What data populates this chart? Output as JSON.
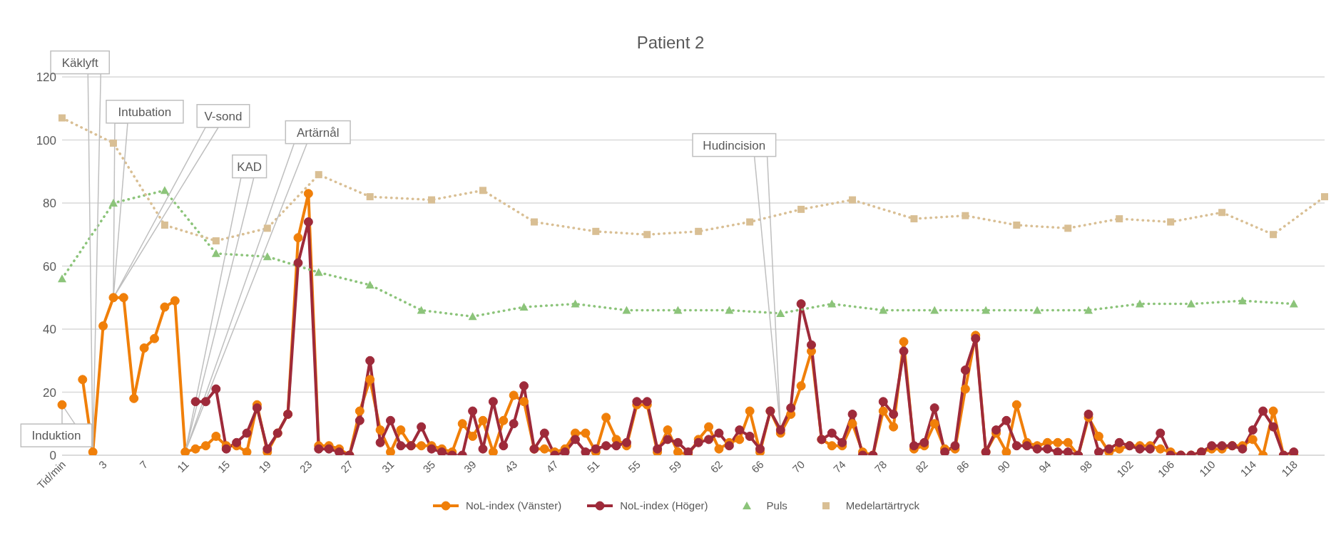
{
  "chart_data": {
    "type": "line",
    "title": "Patient 2",
    "categories": [
      "Tid/min",
      null,
      null,
      null,
      "3",
      null,
      null,
      null,
      "7",
      null,
      null,
      null,
      "11",
      null,
      null,
      null,
      "15",
      null,
      null,
      null,
      "19",
      null,
      null,
      null,
      "23",
      null,
      null,
      null,
      "27",
      null,
      null,
      null,
      "31",
      null,
      null,
      null,
      "35",
      null,
      null,
      null,
      "39",
      null,
      null,
      null,
      "43",
      null,
      null,
      null,
      "47",
      null,
      null,
      null,
      "51",
      null,
      null,
      null,
      "55",
      null,
      null,
      null,
      "59",
      null,
      null,
      null,
      "62",
      null,
      null,
      null,
      "66",
      null,
      null,
      null,
      "70",
      null,
      null,
      null,
      "74",
      null,
      null,
      null,
      "78",
      null,
      null,
      null,
      "82",
      null,
      null,
      null,
      "86",
      null,
      null,
      null,
      "90",
      null,
      null,
      null,
      "94",
      null,
      null,
      null,
      "98",
      null,
      null,
      null,
      "102",
      null,
      null,
      null,
      "106",
      null,
      null,
      null,
      "110",
      null,
      null,
      null,
      "114",
      null,
      null,
      null,
      "118",
      null,
      null,
      null
    ],
    "series": [
      {
        "name": "NoL-index (Vänster)",
        "color": "#f07f09",
        "marker": "circle",
        "line_style": "solid",
        "values": [
          16,
          null,
          24,
          1,
          41,
          50,
          50,
          18,
          34,
          37,
          47,
          49,
          1,
          2,
          3,
          6,
          3,
          3,
          1,
          16,
          1,
          7,
          13,
          69,
          83,
          3,
          3,
          2,
          0,
          14,
          24,
          8,
          1,
          8,
          3,
          3,
          3,
          2,
          1,
          10,
          6,
          11,
          1,
          11,
          19,
          17,
          2,
          2,
          1,
          2,
          7,
          7,
          1,
          12,
          5,
          3,
          16,
          16,
          1,
          8,
          1,
          0,
          5,
          9,
          2,
          4,
          5,
          14,
          1,
          14,
          7,
          13,
          22,
          33,
          5,
          3,
          3,
          10,
          1,
          0,
          14,
          9,
          36,
          2,
          3,
          10,
          2,
          2,
          21,
          38,
          1,
          7,
          1,
          16,
          4,
          3,
          4,
          4,
          4,
          0,
          12,
          6,
          1,
          2,
          3,
          3,
          3,
          2,
          1,
          0,
          0,
          1,
          2,
          2,
          3,
          3,
          5,
          0,
          14,
          0,
          0,
          null,
          null,
          null
        ]
      },
      {
        "name": "NoL-index (Höger)",
        "color": "#9e2a3a",
        "marker": "circle",
        "line_style": "solid",
        "values": [
          null,
          null,
          null,
          null,
          null,
          null,
          null,
          null,
          null,
          null,
          null,
          null,
          null,
          17,
          17,
          21,
          2,
          4,
          7,
          15,
          2,
          7,
          13,
          61,
          74,
          2,
          2,
          1,
          0,
          11,
          30,
          4,
          11,
          3,
          3,
          9,
          2,
          1,
          0,
          0,
          14,
          2,
          17,
          3,
          10,
          22,
          2,
          7,
          0,
          1,
          5,
          1,
          2,
          3,
          3,
          4,
          17,
          17,
          2,
          5,
          4,
          1,
          4,
          5,
          7,
          3,
          8,
          6,
          2,
          14,
          8,
          15,
          48,
          35,
          5,
          7,
          4,
          13,
          0,
          0,
          17,
          13,
          33,
          3,
          4,
          15,
          1,
          3,
          27,
          37,
          1,
          8,
          11,
          3,
          3,
          2,
          2,
          1,
          1,
          0,
          13,
          1,
          2,
          4,
          3,
          2,
          2,
          7,
          0,
          0,
          0,
          1,
          3,
          3,
          3,
          2,
          8,
          14,
          9,
          0,
          1,
          null,
          null,
          null
        ]
      },
      {
        "name": "Puls",
        "color": "#8cc47a",
        "marker": "triangle",
        "line_style": "dotted",
        "values": [
          56,
          null,
          null,
          null,
          null,
          80,
          null,
          null,
          null,
          null,
          84,
          null,
          null,
          null,
          null,
          64,
          null,
          null,
          null,
          null,
          63,
          null,
          null,
          null,
          null,
          58,
          null,
          null,
          null,
          null,
          54,
          null,
          null,
          null,
          null,
          46,
          null,
          null,
          null,
          null,
          44,
          null,
          null,
          null,
          null,
          47,
          null,
          null,
          null,
          null,
          48,
          null,
          null,
          null,
          null,
          46,
          null,
          null,
          null,
          null,
          46,
          null,
          null,
          null,
          null,
          46,
          null,
          null,
          null,
          null,
          45,
          null,
          null,
          null,
          null,
          48,
          null,
          null,
          null,
          null,
          46,
          null,
          null,
          null,
          null,
          46,
          null,
          null,
          null,
          null,
          46,
          null,
          null,
          null,
          null,
          46,
          null,
          null,
          null,
          null,
          46,
          null,
          null,
          null,
          null,
          48,
          null,
          null,
          null,
          null,
          48,
          null,
          null,
          null,
          null,
          49,
          null,
          null,
          null,
          null,
          48,
          null,
          null,
          null
        ]
      },
      {
        "name": "Medelartärtryck",
        "color": "#d9bf94",
        "marker": "square",
        "line_style": "dotted",
        "values": [
          107,
          null,
          null,
          null,
          null,
          99,
          null,
          null,
          null,
          null,
          73,
          null,
          null,
          null,
          null,
          68,
          null,
          null,
          null,
          null,
          72,
          null,
          null,
          null,
          null,
          89,
          null,
          null,
          null,
          null,
          82,
          null,
          null,
          null,
          null,
          null,
          81,
          null,
          null,
          null,
          null,
          84,
          null,
          null,
          null,
          null,
          74,
          null,
          null,
          null,
          null,
          null,
          71,
          null,
          null,
          null,
          null,
          70,
          null,
          null,
          null,
          null,
          71,
          null,
          null,
          null,
          null,
          74,
          null,
          null,
          null,
          null,
          78,
          null,
          null,
          null,
          null,
          81,
          null,
          null,
          null,
          null,
          null,
          75,
          null,
          null,
          null,
          null,
          76,
          null,
          null,
          null,
          null,
          73,
          null,
          null,
          null,
          null,
          72,
          null,
          null,
          null,
          null,
          75,
          null,
          null,
          null,
          null,
          74,
          null,
          null,
          null,
          null,
          77,
          null,
          null,
          null,
          null,
          70,
          null,
          null,
          null,
          null,
          82
        ]
      }
    ],
    "ylim": [
      0,
      120
    ],
    "yticks": [
      0,
      20,
      40,
      60,
      80,
      100,
      120
    ],
    "grid": "y",
    "legend": "bottom",
    "annotations": [
      "Induktion",
      "Käklyft",
      "Intubation",
      "V-sond",
      "KAD",
      "Artärnål",
      "Hudincision"
    ]
  }
}
